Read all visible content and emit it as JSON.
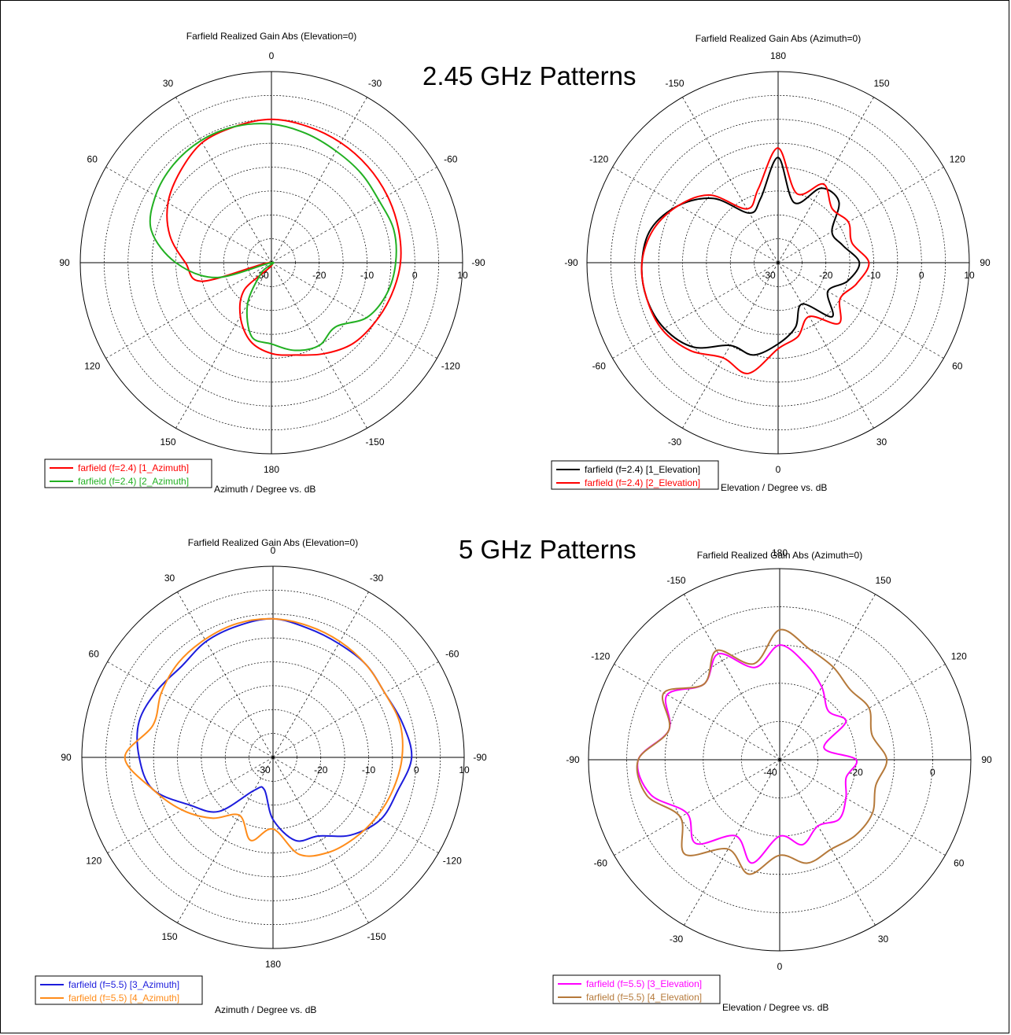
{
  "headings": {
    "top": "2.45 GHz Patterns",
    "bottom": "5 GHz Patterns"
  },
  "chart_data": [
    {
      "type": "polar",
      "title": "Farfield Realized Gain Abs (Elevation=0)",
      "axis_label": "Azimuth / Degree vs. dB",
      "radial_ticks": [
        "-30",
        "-20",
        "-10",
        "0",
        "10"
      ],
      "rlim": [
        -30,
        10
      ],
      "angle_labels": [
        "0",
        "-30",
        "-60",
        "-90",
        "-120",
        "-150",
        "180",
        "150",
        "120",
        "90",
        "60",
        "30"
      ],
      "rotation": "cw",
      "legend": "bottom-left",
      "series": [
        {
          "name": "farfield (f=2.4) [1_Azimuth]",
          "color": "#ff0000",
          "theta": [
            0,
            15,
            30,
            45,
            60,
            75,
            90,
            105,
            120,
            135,
            150,
            165,
            180,
            195,
            210,
            225,
            240,
            255,
            270,
            285,
            300,
            315,
            330,
            345
          ],
          "r": [
            0,
            -0.5,
            -1,
            -1.5,
            -2,
            -2.5,
            -3,
            -4,
            -5,
            -6,
            -8,
            -10,
            -11,
            -13,
            -17,
            -22,
            -30,
            -15,
            -12,
            -8,
            -5,
            -3,
            -1,
            -0.5
          ]
        },
        {
          "name": "farfield (f=2.4) [2_Azimuth]",
          "color": "#22b022",
          "theta": [
            0,
            15,
            30,
            45,
            60,
            75,
            90,
            105,
            120,
            135,
            150,
            165,
            180,
            195,
            210,
            225,
            240,
            255,
            270,
            285,
            300,
            315,
            330,
            345
          ],
          "r": [
            -1,
            -2,
            -3,
            -3.5,
            -4,
            -3.5,
            -4,
            -5,
            -7,
            -11,
            -10,
            -11,
            -13,
            -14,
            -20,
            -27,
            -30,
            -18,
            -10,
            -4,
            -2,
            -1,
            -0.5,
            -0.5
          ]
        }
      ]
    },
    {
      "type": "polar",
      "title": "Farfield Realized Gain Abs (Azimuth=0)",
      "axis_label": "Elevation / Degree vs. dB",
      "radial_ticks": [
        "-30",
        "-20",
        "-10",
        "0",
        "10"
      ],
      "rlim": [
        -30,
        10
      ],
      "angle_labels": [
        "-90",
        "-120",
        "-150",
        "180",
        "150",
        "120",
        "90",
        "60",
        "30",
        "0",
        "-30",
        "-60"
      ],
      "rotation": "ccw",
      "legend": "bottom-left",
      "series": [
        {
          "name": "farfield (f=2.4) [1_Elevation]",
          "color": "#000000",
          "theta": [
            0,
            15,
            30,
            45,
            60,
            75,
            90,
            105,
            120,
            135,
            150,
            165,
            180,
            195,
            210,
            225,
            240,
            255,
            270,
            285,
            300,
            315,
            330,
            345
          ],
          "r": [
            -1.5,
            -2.5,
            -6,
            -11,
            -18,
            -16,
            -8,
            -17,
            -12,
            -12,
            -17,
            -16,
            -13,
            -15,
            -18,
            -14,
            -20,
            -16,
            -13,
            -10,
            -10,
            -5,
            -2.5,
            -1.5
          ]
        },
        {
          "name": "farfield (f=2.4) [2_Elevation]",
          "color": "#ff0000",
          "theta": [
            0,
            15,
            30,
            45,
            60,
            75,
            90,
            105,
            120,
            135,
            150,
            165,
            180,
            195,
            210,
            225,
            240,
            255,
            270,
            285,
            300,
            315,
            330,
            345
          ],
          "r": [
            -1.5,
            -3,
            -6,
            -10,
            -17,
            -14,
            -6,
            -15,
            -11,
            -14,
            -13,
            -14,
            -11,
            -13,
            -15,
            -12,
            -17,
            -14,
            -12,
            -6,
            -7,
            -4,
            -2,
            -1.5
          ]
        }
      ]
    },
    {
      "type": "polar",
      "title": "Farfield Realized Gain Abs (Elevation=0)",
      "axis_label": "Azimuth / Degree vs. dB",
      "radial_ticks": [
        "-30",
        "-20",
        "-10",
        "0",
        "10"
      ],
      "rlim": [
        -30,
        10
      ],
      "angle_labels": [
        "0",
        "-30",
        "-60",
        "-90",
        "-120",
        "-150",
        "180",
        "150",
        "120",
        "90",
        "60",
        "30"
      ],
      "rotation": "cw",
      "legend": "bottom-left",
      "series": [
        {
          "name": "farfield (f=5.5) [3_Azimuth]",
          "color": "#1c1cdc",
          "theta": [
            0,
            15,
            30,
            45,
            60,
            75,
            90,
            105,
            120,
            135,
            150,
            165,
            180,
            195,
            210,
            225,
            240,
            255,
            270,
            285,
            300,
            315,
            330,
            345
          ],
          "r": [
            -1,
            -2,
            -2.5,
            -2.5,
            -3,
            -2,
            -1,
            -3,
            -4,
            -7,
            -11,
            -12,
            -17,
            -23,
            -22,
            -14,
            -10,
            -4,
            -2,
            -1,
            -2,
            -3,
            -2,
            -1.5
          ]
        },
        {
          "name": "farfield (f=5.5) [4_Azimuth]",
          "color": "#ff8c1a",
          "theta": [
            0,
            15,
            30,
            45,
            60,
            75,
            90,
            105,
            120,
            135,
            150,
            165,
            180,
            195,
            210,
            225,
            240,
            255,
            270,
            285,
            300,
            315,
            330,
            345
          ],
          "r": [
            -1,
            -1.5,
            -2,
            -2.5,
            -3,
            -2.5,
            -3,
            -4,
            -5,
            -6,
            -7,
            -9,
            -15,
            -12,
            -16,
            -12,
            -8,
            -4,
            1,
            -4,
            -3,
            -2,
            -1.5,
            -1
          ]
        }
      ]
    },
    {
      "type": "polar",
      "title": "Farfield Realized Gain Abs (Azimuth=0)",
      "axis_label": "Elevation / Degree vs. dB",
      "radial_ticks": [
        "-40",
        "-20",
        "0"
      ],
      "rlim": [
        -40,
        10
      ],
      "angle_labels": [
        "-90",
        "-120",
        "-150",
        "180",
        "150",
        "120",
        "90",
        "60",
        "30",
        "0",
        "-30",
        "-60"
      ],
      "rotation": "ccw",
      "legend": "bottom-left",
      "series": [
        {
          "name": "farfield (f=5.5) [3_Elevation]",
          "color": "#ff00ff",
          "theta": [
            0,
            15,
            30,
            45,
            60,
            75,
            90,
            105,
            120,
            135,
            150,
            165,
            180,
            195,
            210,
            225,
            240,
            255,
            270,
            285,
            300,
            315,
            330,
            345
          ],
          "r": [
            -3,
            -10,
            -6,
            -12,
            -8,
            -15,
            -10,
            -14,
            -18,
            -22,
            -20,
            -28,
            -20,
            -22,
            -20,
            -18,
            -20,
            -17,
            -20,
            -12,
            -17,
            -9,
            -12,
            -5
          ]
        },
        {
          "name": "farfield (f=5.5) [4_Elevation]",
          "color": "#b5793a",
          "theta": [
            0,
            15,
            30,
            45,
            60,
            75,
            90,
            105,
            120,
            135,
            150,
            165,
            180,
            195,
            210,
            225,
            240,
            255,
            270,
            285,
            300,
            315,
            330,
            345
          ],
          "r": [
            -3,
            -10,
            -5,
            -12,
            -7,
            -14,
            -6,
            -10,
            -12,
            -14,
            -13,
            -15,
            -12,
            -14,
            -12,
            -12,
            -13,
            -12,
            -15,
            -9,
            -13,
            -5,
            -10,
            -4
          ]
        }
      ]
    }
  ]
}
